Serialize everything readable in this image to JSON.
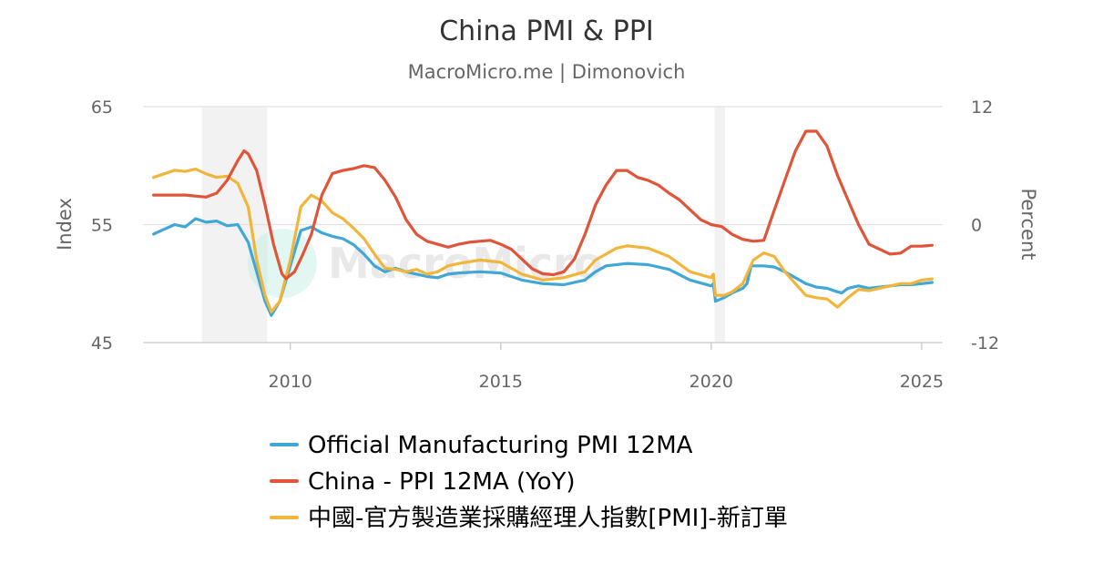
{
  "chart_data": {
    "type": "line",
    "title": "China PMI & PPI",
    "subtitle": "MacroMicro.me | Dimonovich",
    "watermark": "MacroMicro",
    "y_left": {
      "label": "Index",
      "min": 45,
      "max": 65,
      "ticks": [
        "45",
        "55",
        "65"
      ]
    },
    "y_right": {
      "label": "Percent",
      "min": -12,
      "max": 12,
      "ticks": [
        "-12",
        "0",
        "12"
      ]
    },
    "x": {
      "min": 2006.5,
      "max": 2025.5,
      "ticks": [
        "2010",
        "2015",
        "2020",
        "2025"
      ]
    },
    "shaded_periods": [
      [
        2007.9,
        2009.45
      ],
      [
        2020.08,
        2020.33
      ]
    ],
    "grid": "horizontal",
    "legend_position": "bottom",
    "series": [
      {
        "name": "Official Manufacturing PMI 12MA",
        "axis": "left",
        "color": "#41a8d5",
        "points": [
          [
            2006.75,
            54.2
          ],
          [
            2007.0,
            54.6
          ],
          [
            2007.25,
            55.0
          ],
          [
            2007.5,
            54.8
          ],
          [
            2007.75,
            55.5
          ],
          [
            2008.0,
            55.2
          ],
          [
            2008.25,
            55.3
          ],
          [
            2008.5,
            54.9
          ],
          [
            2008.75,
            55.0
          ],
          [
            2009.0,
            53.5
          ],
          [
            2009.2,
            51.0
          ],
          [
            2009.4,
            48.5
          ],
          [
            2009.55,
            47.3
          ],
          [
            2009.75,
            48.5
          ],
          [
            2010.0,
            51.5
          ],
          [
            2010.25,
            54.5
          ],
          [
            2010.5,
            54.8
          ],
          [
            2010.75,
            54.3
          ],
          [
            2011.0,
            54.0
          ],
          [
            2011.25,
            53.8
          ],
          [
            2011.5,
            53.3
          ],
          [
            2011.75,
            52.5
          ],
          [
            2012.0,
            51.5
          ],
          [
            2012.25,
            51.0
          ],
          [
            2012.5,
            51.3
          ],
          [
            2012.75,
            51.0
          ],
          [
            2013.0,
            50.8
          ],
          [
            2013.25,
            50.6
          ],
          [
            2013.5,
            50.5
          ],
          [
            2013.75,
            50.8
          ],
          [
            2014.0,
            50.9
          ],
          [
            2014.5,
            51.0
          ],
          [
            2015.0,
            50.9
          ],
          [
            2015.5,
            50.3
          ],
          [
            2016.0,
            50.0
          ],
          [
            2016.5,
            49.9
          ],
          [
            2017.0,
            50.3
          ],
          [
            2017.25,
            51.0
          ],
          [
            2017.5,
            51.5
          ],
          [
            2018.0,
            51.7
          ],
          [
            2018.5,
            51.6
          ],
          [
            2019.0,
            51.2
          ],
          [
            2019.5,
            50.3
          ],
          [
            2020.0,
            49.8
          ],
          [
            2020.05,
            50.0
          ],
          [
            2020.1,
            48.5
          ],
          [
            2020.3,
            48.8
          ],
          [
            2020.5,
            49.2
          ],
          [
            2020.75,
            49.6
          ],
          [
            2020.85,
            50.0
          ],
          [
            2020.95,
            51.5
          ],
          [
            2021.25,
            51.5
          ],
          [
            2021.5,
            51.4
          ],
          [
            2021.75,
            51.0
          ],
          [
            2022.0,
            50.5
          ],
          [
            2022.25,
            50.0
          ],
          [
            2022.5,
            49.7
          ],
          [
            2022.75,
            49.6
          ],
          [
            2023.0,
            49.3
          ],
          [
            2023.1,
            49.2
          ],
          [
            2023.25,
            49.6
          ],
          [
            2023.5,
            49.8
          ],
          [
            2023.75,
            49.6
          ],
          [
            2024.0,
            49.7
          ],
          [
            2024.25,
            49.8
          ],
          [
            2024.5,
            49.9
          ],
          [
            2024.75,
            49.9
          ],
          [
            2025.0,
            50.0
          ],
          [
            2025.25,
            50.1
          ]
        ]
      },
      {
        "name": "China - PPI 12MA (YoY)",
        "axis": "right",
        "color": "#e0543a",
        "points": [
          [
            2006.75,
            3.0
          ],
          [
            2007.0,
            3.0
          ],
          [
            2007.5,
            3.0
          ],
          [
            2008.0,
            2.8
          ],
          [
            2008.25,
            3.2
          ],
          [
            2008.5,
            4.5
          ],
          [
            2008.75,
            6.5
          ],
          [
            2008.9,
            7.5
          ],
          [
            2009.0,
            7.2
          ],
          [
            2009.2,
            5.5
          ],
          [
            2009.4,
            2.0
          ],
          [
            2009.6,
            -2.0
          ],
          [
            2009.8,
            -5.0
          ],
          [
            2009.9,
            -5.5
          ],
          [
            2010.1,
            -4.8
          ],
          [
            2010.3,
            -3.0
          ],
          [
            2010.5,
            -1.0
          ],
          [
            2010.75,
            3.0
          ],
          [
            2011.0,
            5.2
          ],
          [
            2011.25,
            5.5
          ],
          [
            2011.5,
            5.7
          ],
          [
            2011.75,
            6.0
          ],
          [
            2012.0,
            5.8
          ],
          [
            2012.25,
            4.5
          ],
          [
            2012.5,
            2.8
          ],
          [
            2012.75,
            0.5
          ],
          [
            2013.0,
            -1.0
          ],
          [
            2013.25,
            -1.7
          ],
          [
            2013.5,
            -2.0
          ],
          [
            2013.75,
            -2.3
          ],
          [
            2014.0,
            -2.0
          ],
          [
            2014.25,
            -1.8
          ],
          [
            2014.5,
            -1.7
          ],
          [
            2014.75,
            -1.6
          ],
          [
            2015.0,
            -2.0
          ],
          [
            2015.25,
            -2.5
          ],
          [
            2015.5,
            -3.5
          ],
          [
            2015.75,
            -4.5
          ],
          [
            2016.0,
            -5.0
          ],
          [
            2016.25,
            -5.1
          ],
          [
            2016.5,
            -4.8
          ],
          [
            2016.75,
            -3.5
          ],
          [
            2017.0,
            -1.0
          ],
          [
            2017.25,
            2.0
          ],
          [
            2017.5,
            4.0
          ],
          [
            2017.75,
            5.5
          ],
          [
            2018.0,
            5.5
          ],
          [
            2018.25,
            4.8
          ],
          [
            2018.5,
            4.5
          ],
          [
            2018.75,
            4.0
          ],
          [
            2019.0,
            3.2
          ],
          [
            2019.25,
            2.5
          ],
          [
            2019.5,
            1.5
          ],
          [
            2019.75,
            0.5
          ],
          [
            2020.0,
            0.0
          ],
          [
            2020.25,
            -0.2
          ],
          [
            2020.5,
            -1.0
          ],
          [
            2020.75,
            -1.5
          ],
          [
            2021.0,
            -1.7
          ],
          [
            2021.25,
            -1.6
          ],
          [
            2021.5,
            1.5
          ],
          [
            2021.75,
            4.5
          ],
          [
            2022.0,
            7.5
          ],
          [
            2022.25,
            9.5
          ],
          [
            2022.5,
            9.5
          ],
          [
            2022.75,
            8.0
          ],
          [
            2023.0,
            5.0
          ],
          [
            2023.25,
            2.5
          ],
          [
            2023.5,
            0.0
          ],
          [
            2023.75,
            -2.0
          ],
          [
            2024.0,
            -2.5
          ],
          [
            2024.25,
            -3.0
          ],
          [
            2024.5,
            -2.9
          ],
          [
            2024.75,
            -2.2
          ],
          [
            2025.0,
            -2.2
          ],
          [
            2025.25,
            -2.1
          ]
        ]
      },
      {
        "name": "中國-官方製造業採購經理人指數[PMI]-新訂單",
        "axis": "left",
        "color": "#f2b53b",
        "points": [
          [
            2006.75,
            59.0
          ],
          [
            2007.0,
            59.3
          ],
          [
            2007.25,
            59.6
          ],
          [
            2007.5,
            59.5
          ],
          [
            2007.75,
            59.7
          ],
          [
            2008.0,
            59.3
          ],
          [
            2008.25,
            59.0
          ],
          [
            2008.5,
            59.1
          ],
          [
            2008.75,
            58.5
          ],
          [
            2009.0,
            56.5
          ],
          [
            2009.2,
            52.0
          ],
          [
            2009.4,
            49.0
          ],
          [
            2009.55,
            47.6
          ],
          [
            2009.75,
            48.5
          ],
          [
            2010.0,
            52.0
          ],
          [
            2010.25,
            56.5
          ],
          [
            2010.5,
            57.5
          ],
          [
            2010.75,
            57.0
          ],
          [
            2011.0,
            56.0
          ],
          [
            2011.25,
            55.5
          ],
          [
            2011.5,
            54.7
          ],
          [
            2011.75,
            53.8
          ],
          [
            2012.0,
            52.5
          ],
          [
            2012.25,
            51.3
          ],
          [
            2012.5,
            51.2
          ],
          [
            2012.75,
            51.0
          ],
          [
            2013.0,
            51.2
          ],
          [
            2013.25,
            50.8
          ],
          [
            2013.5,
            51.0
          ],
          [
            2013.75,
            51.5
          ],
          [
            2014.0,
            51.7
          ],
          [
            2014.5,
            52.0
          ],
          [
            2015.0,
            51.8
          ],
          [
            2015.5,
            50.8
          ],
          [
            2016.0,
            50.3
          ],
          [
            2016.5,
            50.5
          ],
          [
            2017.0,
            51.0
          ],
          [
            2017.25,
            52.0
          ],
          [
            2017.5,
            52.5
          ],
          [
            2017.75,
            53.0
          ],
          [
            2018.0,
            53.2
          ],
          [
            2018.5,
            53.0
          ],
          [
            2019.0,
            52.3
          ],
          [
            2019.5,
            51.0
          ],
          [
            2020.0,
            50.5
          ],
          [
            2020.05,
            50.8
          ],
          [
            2020.1,
            49.0
          ],
          [
            2020.3,
            49.0
          ],
          [
            2020.5,
            49.3
          ],
          [
            2020.75,
            50.0
          ],
          [
            2021.0,
            52.0
          ],
          [
            2021.25,
            52.6
          ],
          [
            2021.5,
            52.3
          ],
          [
            2021.75,
            51.0
          ],
          [
            2022.0,
            50.0
          ],
          [
            2022.25,
            49.0
          ],
          [
            2022.5,
            48.8
          ],
          [
            2022.75,
            48.7
          ],
          [
            2023.0,
            48.0
          ],
          [
            2023.25,
            48.8
          ],
          [
            2023.5,
            49.5
          ],
          [
            2023.75,
            49.4
          ],
          [
            2024.0,
            49.6
          ],
          [
            2024.25,
            49.8
          ],
          [
            2024.5,
            50.0
          ],
          [
            2024.75,
            50.0
          ],
          [
            2025.0,
            50.3
          ],
          [
            2025.25,
            50.4
          ]
        ]
      }
    ]
  }
}
